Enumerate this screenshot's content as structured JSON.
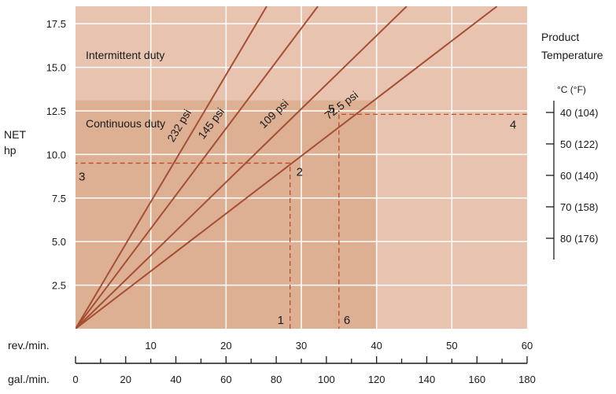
{
  "chart_data": {
    "type": "line",
    "xlabel": "rev./min.",
    "x2label": "gal./min.",
    "ylabel_line1": "NET",
    "ylabel_line2": "hp",
    "xlim": [
      0,
      60
    ],
    "ylim": [
      0,
      18.5
    ],
    "x_ticks": [
      "10",
      "20",
      "30",
      "40",
      "50",
      "60"
    ],
    "x_tick_values": [
      10,
      20,
      30,
      40,
      50,
      60
    ],
    "y_ticks": [
      "2.5",
      "5.0",
      "7.5",
      "10.0",
      "12.5",
      "15.0",
      "17.5"
    ],
    "y_tick_values": [
      2.5,
      5.0,
      7.5,
      10.0,
      12.5,
      15.0,
      17.5
    ],
    "gpm_ticks": [
      "0",
      "20",
      "40",
      "60",
      "80",
      "100",
      "120",
      "140",
      "160",
      "180"
    ],
    "gpm_tick_values": [
      0,
      20,
      40,
      60,
      80,
      100,
      120,
      140,
      160,
      180
    ],
    "gpm_max": 180,
    "grid": true,
    "regions": {
      "intermittent_label": "Intermittent duty",
      "continuous_label": "Continuous duty",
      "continuous_x_max": 40,
      "continuous_y_max": 13.1
    },
    "series": [
      {
        "name": "232 psi",
        "x": [
          0,
          25.4
        ],
        "y": [
          0,
          18.5
        ]
      },
      {
        "name": "145 psi",
        "x": [
          0,
          32.2
        ],
        "y": [
          0,
          18.5
        ]
      },
      {
        "name": "109 psi",
        "x": [
          0,
          44
        ],
        "y": [
          0,
          18.5
        ]
      },
      {
        "name": "72.5 psi",
        "x": [
          0,
          56
        ],
        "y": [
          0,
          18.5
        ]
      }
    ],
    "example_path": [
      {
        "label": "1",
        "x": 28.5,
        "y": 0
      },
      {
        "label": "2",
        "x": 28.5,
        "y": 9.5
      },
      {
        "label": "3",
        "x": 0,
        "y": 9.5
      },
      {
        "label": "4",
        "x": 60,
        "y": 12.3
      },
      {
        "label": "5",
        "x": 35,
        "y": 12.3
      },
      {
        "label": "6",
        "x": 35,
        "y": 0
      }
    ],
    "temperature_scale": {
      "title_line1": "Product",
      "title_line2": "Temperature",
      "unit": "°C  (°F)",
      "ticks": [
        "40 (104)",
        "50 (122)",
        "60 (140)",
        "70 (158)",
        "80 (176)"
      ]
    },
    "colors": {
      "plot_bg": "#e8c4b0",
      "continuous_bg": "#ddb094",
      "line": "#a64e34",
      "grid": "#ffffff",
      "dashed": "#b84c2c"
    }
  }
}
